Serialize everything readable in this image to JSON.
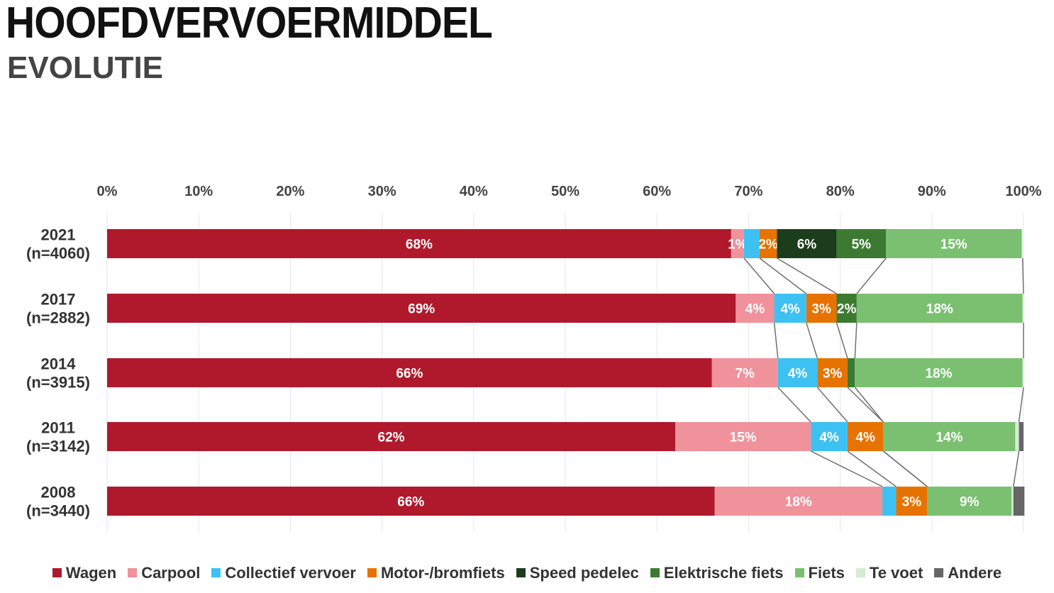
{
  "header": {
    "title": "HOOFDVERVOERMIDDEL",
    "subtitle": "EVOLUTIE"
  },
  "chart_data": {
    "type": "bar",
    "orientation": "horizontal",
    "stacked": true,
    "xlim": [
      0,
      100
    ],
    "xticks": [
      "0%",
      "10%",
      "20%",
      "30%",
      "40%",
      "50%",
      "60%",
      "70%",
      "80%",
      "90%",
      "100%"
    ],
    "xaxis_position": "top",
    "grid": true,
    "legend_position": "bottom",
    "categories": [
      "2021\n(n=4060)",
      "2017\n(n=2882)",
      "2014\n(n=3915)",
      "2011\n(n=3142)",
      "2008\n(n=3440)"
    ],
    "category_lines": [
      [
        "2021",
        "(n=4060)"
      ],
      [
        "2017",
        "(n=2882)"
      ],
      [
        "2014",
        "(n=3915)"
      ],
      [
        "2011",
        "(n=3142)"
      ],
      [
        "2008",
        "(n=3440)"
      ]
    ],
    "series": [
      {
        "name": "Wagen",
        "color": "#B0192C",
        "label_color": "#ffffff",
        "values": [
          68.1,
          68.6,
          66.0,
          62.0,
          66.3
        ],
        "labels": [
          "68%",
          "69%",
          "66%",
          "62%",
          "66%"
        ]
      },
      {
        "name": "Carpool",
        "color": "#F0929B",
        "label_color": "#ffffff",
        "values": [
          1.4,
          4.2,
          7.2,
          14.8,
          18.3
        ],
        "labels": [
          "1%",
          "4%",
          "7%",
          "15%",
          "18%"
        ]
      },
      {
        "name": "Collectief vervoer",
        "color": "#3DC1F3",
        "label_color": "#ffffff",
        "values": [
          1.7,
          3.5,
          4.3,
          4.0,
          1.5
        ],
        "labels": [
          "",
          "4%",
          "4%",
          "4%",
          ""
        ]
      },
      {
        "name": "Motor-/bromfiets",
        "color": "#E67300",
        "label_color": "#ffffff",
        "values": [
          1.9,
          3.3,
          3.3,
          3.9,
          3.4
        ],
        "labels": [
          "2%",
          "3%",
          "3%",
          "4%",
          "3%"
        ]
      },
      {
        "name": "Speed pedelec",
        "color": "#1B3D1B",
        "label_color": "#ffffff",
        "values": [
          6.5,
          0,
          0,
          0,
          0
        ],
        "labels": [
          "6%",
          "",
          "",
          "",
          ""
        ]
      },
      {
        "name": "Elektrische fiets",
        "color": "#3C7A32",
        "label_color": "#ffffff",
        "values": [
          5.4,
          2.2,
          0.8,
          0,
          0
        ],
        "labels": [
          "5%",
          "2%",
          "",
          "",
          ""
        ]
      },
      {
        "name": "Fiets",
        "color": "#7AC070",
        "label_color": "#ffffff",
        "values": [
          14.8,
          18.1,
          18.3,
          14.4,
          9.2
        ],
        "labels": [
          "15%",
          "18%",
          "18%",
          "14%",
          "9%"
        ]
      },
      {
        "name": "Te voet",
        "color": "#D3ECD3",
        "label_color": "#ffffff",
        "values": [
          0.1,
          0.1,
          0.1,
          0.4,
          0.2
        ],
        "labels": [
          "",
          "",
          "",
          "",
          ""
        ]
      },
      {
        "name": "Andere",
        "color": "#666666",
        "label_color": "#ffffff",
        "values": [
          0,
          0,
          0,
          0.5,
          1.2
        ],
        "labels": [
          "",
          "",
          "",
          "",
          ""
        ]
      }
    ]
  }
}
